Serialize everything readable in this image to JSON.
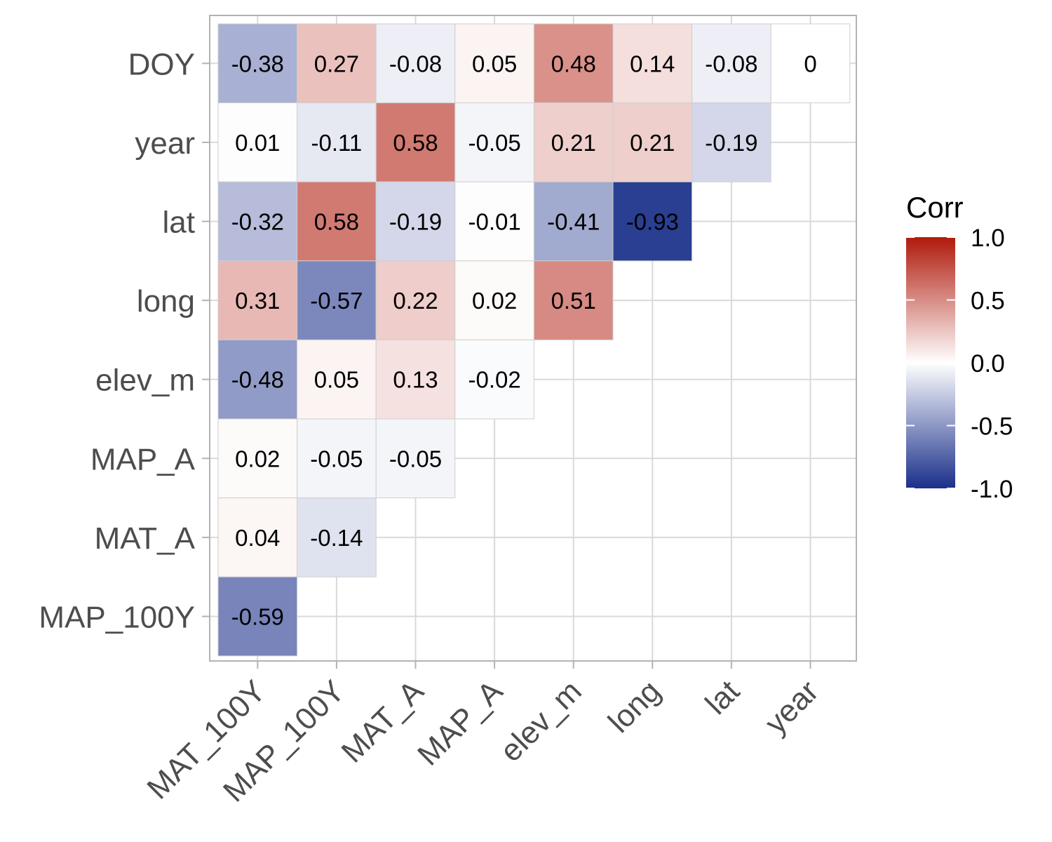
{
  "chart_data": {
    "type": "heatmap",
    "rows": [
      "DOY",
      "year",
      "lat",
      "long",
      "elev_m",
      "MAP_A",
      "MAT_A",
      "MAP_100Y"
    ],
    "columns": [
      "MAT_100Y",
      "MAP_100Y",
      "MAT_A",
      "MAP_A",
      "elev_m",
      "long",
      "lat",
      "year"
    ],
    "values": [
      [
        -0.38,
        0.27,
        -0.08,
        0.05,
        0.48,
        0.14,
        -0.08,
        0
      ],
      [
        0.01,
        -0.11,
        0.58,
        -0.05,
        0.21,
        0.21,
        -0.19,
        null
      ],
      [
        -0.32,
        0.58,
        -0.19,
        -0.01,
        -0.41,
        -0.93,
        null,
        null
      ],
      [
        0.31,
        -0.57,
        0.22,
        0.02,
        0.51,
        null,
        null,
        null
      ],
      [
        -0.48,
        0.05,
        0.13,
        -0.02,
        null,
        null,
        null,
        null
      ],
      [
        0.02,
        -0.05,
        -0.05,
        null,
        null,
        null,
        null,
        null
      ],
      [
        0.04,
        -0.14,
        null,
        null,
        null,
        null,
        null,
        null
      ],
      [
        -0.59,
        null,
        null,
        null,
        null,
        null,
        null,
        null
      ]
    ],
    "labels": [
      [
        "-0.38",
        "0.27",
        "-0.08",
        "0.05",
        "0.48",
        "0.14",
        "-0.08",
        "0"
      ],
      [
        "0.01",
        "-0.11",
        "0.58",
        "-0.05",
        "0.21",
        "0.21",
        "-0.19",
        null
      ],
      [
        "-0.32",
        "0.58",
        "-0.19",
        "-0.01",
        "-0.41",
        "-0.93",
        null,
        null
      ],
      [
        "0.31",
        "-0.57",
        "0.22",
        "0.02",
        "0.51",
        null,
        null,
        null
      ],
      [
        "-0.48",
        "0.05",
        "0.13",
        "-0.02",
        null,
        null,
        null,
        null
      ],
      [
        "0.02",
        "-0.05",
        "-0.05",
        null,
        null,
        null,
        null,
        null
      ],
      [
        "0.04",
        "-0.14",
        null,
        null,
        null,
        null,
        null,
        null
      ],
      [
        "-0.59",
        null,
        null,
        null,
        null,
        null,
        null,
        null
      ]
    ],
    "legend": {
      "title": "Corr",
      "range": [
        -1.0,
        1.0
      ],
      "ticks": [
        1.0,
        0.5,
        0.0,
        -0.5,
        -1.0
      ],
      "tick_labels": [
        "1.0",
        "0.5",
        "0.0",
        "-0.5",
        "-1.0"
      ],
      "position": "right"
    },
    "colors": {
      "low": "#1a2f8a",
      "mid": "#ffffff",
      "high": "#b01a0c",
      "grid": "#d9d9d9",
      "border": "#b3b3b3",
      "cell_border": "#cfcfcf"
    },
    "grid": true
  }
}
